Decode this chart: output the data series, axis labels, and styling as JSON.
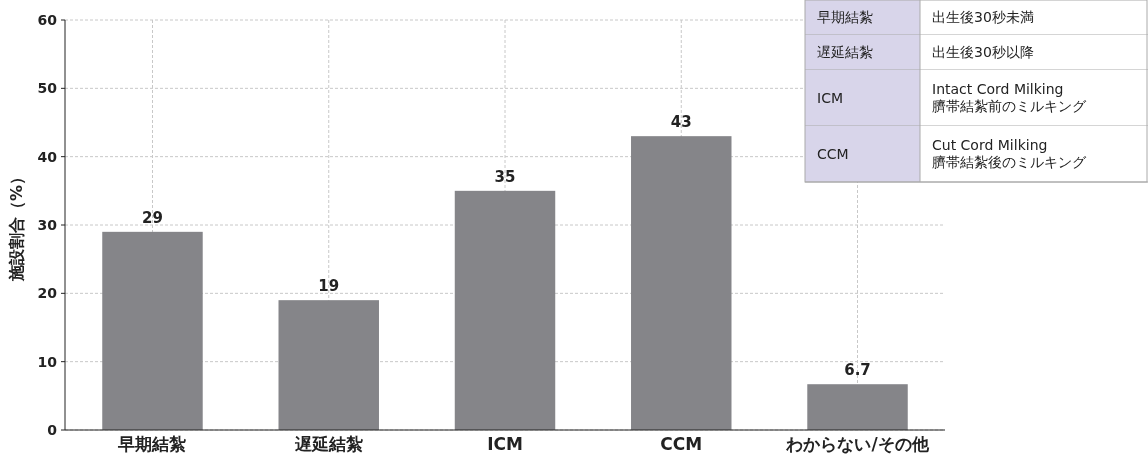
{
  "chart_data": {
    "type": "bar",
    "ylabel": "施設割合（%）",
    "categories": [
      "早期結紮",
      "遅延結紮",
      "ICM",
      "CCM",
      "わからない/その他"
    ],
    "values": [
      29,
      19,
      35,
      43,
      6.7
    ],
    "color": "#858589",
    "data_labels": true,
    "ylim": [
      0,
      60
    ],
    "yticks": [
      0,
      10,
      20,
      30,
      40,
      50,
      60
    ],
    "grid": true,
    "annotations": [
      "早期結紮",
      "出生後30秒未満",
      "遅延結紮",
      "出生後30秒以降",
      "ICM",
      "Intact Cord Milking\n臍帯結紮前のミルキング",
      "CCM",
      "Cut Cord Milking\n臍帯結紮後のミルキング"
    ]
  }
}
